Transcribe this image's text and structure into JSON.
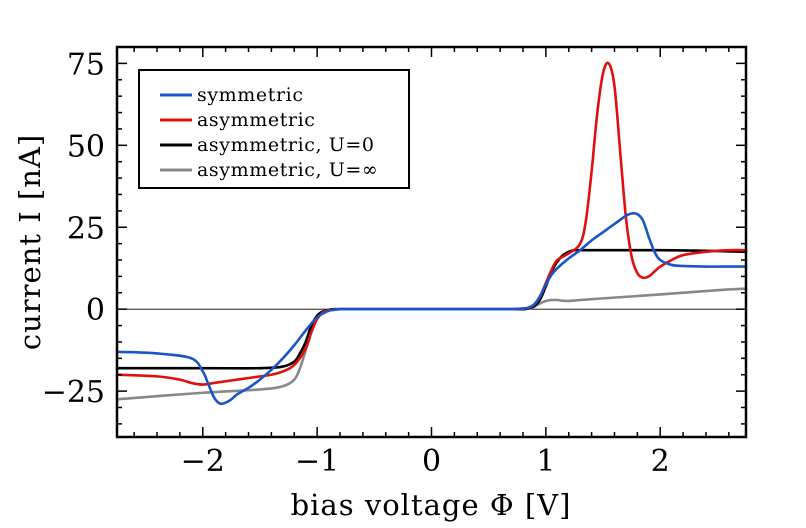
{
  "chart_data": {
    "type": "line",
    "title": "",
    "xlabel": "bias voltage Φ [V]",
    "ylabel": "current I [nA]",
    "xlim": [
      -2.75,
      2.75
    ],
    "ylim": [
      -39,
      80
    ],
    "xticks": [
      -2,
      -1,
      0,
      1,
      2
    ],
    "xtick_labels": [
      "−2",
      "−1",
      "0",
      "1",
      "2"
    ],
    "yticks": [
      -25,
      0,
      25,
      50,
      75
    ],
    "ytick_labels": [
      "−25",
      "0",
      "25",
      "50",
      "75"
    ],
    "grid": false,
    "zero_line": true,
    "legend_position": "top-left",
    "series": [
      {
        "name": "symmetric",
        "color": "#1a55c8",
        "x": [
          -2.75,
          -2.4,
          -2.1,
          -2.0,
          -1.95,
          -1.9,
          -1.85,
          -1.8,
          -1.75,
          -1.7,
          -1.6,
          -1.5,
          -1.4,
          -1.3,
          -1.2,
          -1.1,
          -1.0,
          -0.9,
          -0.85,
          -0.8,
          -0.7,
          -0.5,
          0,
          0.5,
          0.7,
          0.8,
          0.85,
          0.9,
          0.95,
          1.0,
          1.05,
          1.1,
          1.2,
          1.3,
          1.4,
          1.5,
          1.6,
          1.7,
          1.75,
          1.8,
          1.85,
          1.9,
          1.95,
          2.0,
          2.1,
          2.2,
          2.4,
          2.6,
          2.75
        ],
        "values": [
          -13,
          -13.5,
          -15,
          -19,
          -23,
          -27,
          -28.8,
          -28.5,
          -27.5,
          -26,
          -24,
          -21.5,
          -18.5,
          -15,
          -11,
          -6.5,
          -2.5,
          -0.5,
          -0.2,
          0,
          0,
          0,
          0,
          0,
          0,
          0.2,
          0.5,
          1.5,
          4,
          7.5,
          10.5,
          12.5,
          15.5,
          18,
          21,
          23.5,
          26,
          28.5,
          29.2,
          29,
          27,
          22,
          17.5,
          15,
          13.5,
          13.2,
          13,
          13,
          13
        ]
      },
      {
        "name": "asymmetric",
        "color": "#e01010",
        "x": [
          -2.75,
          -2.4,
          -2.2,
          -2.1,
          -2.0,
          -1.9,
          -1.8,
          -1.6,
          -1.4,
          -1.3,
          -1.2,
          -1.1,
          -1.05,
          -1.0,
          -0.95,
          -0.9,
          -0.85,
          -0.8,
          -0.7,
          -0.5,
          0,
          0.5,
          0.7,
          0.8,
          0.85,
          0.9,
          0.95,
          1.0,
          1.05,
          1.1,
          1.2,
          1.3,
          1.35,
          1.4,
          1.45,
          1.5,
          1.55,
          1.6,
          1.65,
          1.7,
          1.75,
          1.8,
          1.85,
          1.9,
          1.95,
          2.0,
          2.1,
          2.2,
          2.4,
          2.6,
          2.75
        ],
        "values": [
          -20,
          -20.5,
          -21.5,
          -22.5,
          -23,
          -22.5,
          -22,
          -21,
          -20,
          -19,
          -17,
          -12,
          -7,
          -3,
          -1,
          -0.3,
          -0.1,
          0,
          0,
          0,
          0,
          0,
          0,
          0.2,
          0.5,
          1.5,
          4,
          8,
          12,
          15,
          17,
          20,
          27,
          42,
          60,
          72,
          75,
          68,
          48,
          28,
          16,
          11,
          9.6,
          10,
          11.5,
          13,
          15,
          16.5,
          17.5,
          18,
          18
        ]
      },
      {
        "name": "asymmetric, U=0",
        "color": "#000000",
        "x": [
          -2.75,
          -2.0,
          -1.5,
          -1.3,
          -1.2,
          -1.15,
          -1.1,
          -1.05,
          -1.0,
          -0.95,
          -0.9,
          -0.85,
          -0.8,
          -0.7,
          -0.5,
          0,
          0.5,
          0.7,
          0.8,
          0.85,
          0.9,
          0.95,
          1.0,
          1.05,
          1.1,
          1.15,
          1.2,
          1.25,
          1.3,
          1.4,
          1.6,
          2.0,
          2.4,
          2.75
        ],
        "values": [
          -18,
          -18,
          -18,
          -17.5,
          -16,
          -13.5,
          -10,
          -5,
          -2,
          -0.7,
          -0.2,
          0,
          0,
          0,
          0,
          0,
          0,
          0,
          0,
          0.3,
          1,
          3,
          7,
          11.5,
          14.5,
          16.5,
          17.5,
          18,
          18,
          18,
          18,
          18,
          17.8,
          17.5
        ]
      },
      {
        "name": "asymmetric, U=∞",
        "color": "#888888",
        "x": [
          -2.75,
          -2.0,
          -1.5,
          -1.3,
          -1.2,
          -1.15,
          -1.1,
          -1.05,
          -1.0,
          -0.95,
          -0.9,
          -0.85,
          -0.8,
          -0.7,
          -0.5,
          0,
          0.5,
          0.7,
          0.8,
          0.85,
          0.9,
          0.95,
          1.0,
          1.05,
          1.1,
          1.15,
          1.2,
          1.3,
          1.5,
          2.0,
          2.5,
          2.75
        ],
        "values": [
          -27.5,
          -25.5,
          -24.5,
          -23.5,
          -21.5,
          -18,
          -12.5,
          -6,
          -2.5,
          -0.8,
          -0.2,
          0,
          0,
          0,
          0,
          0,
          0,
          0,
          0,
          0.2,
          0.8,
          1.8,
          2.5,
          2.8,
          2.8,
          2.6,
          2.5,
          2.8,
          3.3,
          4.5,
          5.8,
          6.3
        ]
      }
    ]
  }
}
